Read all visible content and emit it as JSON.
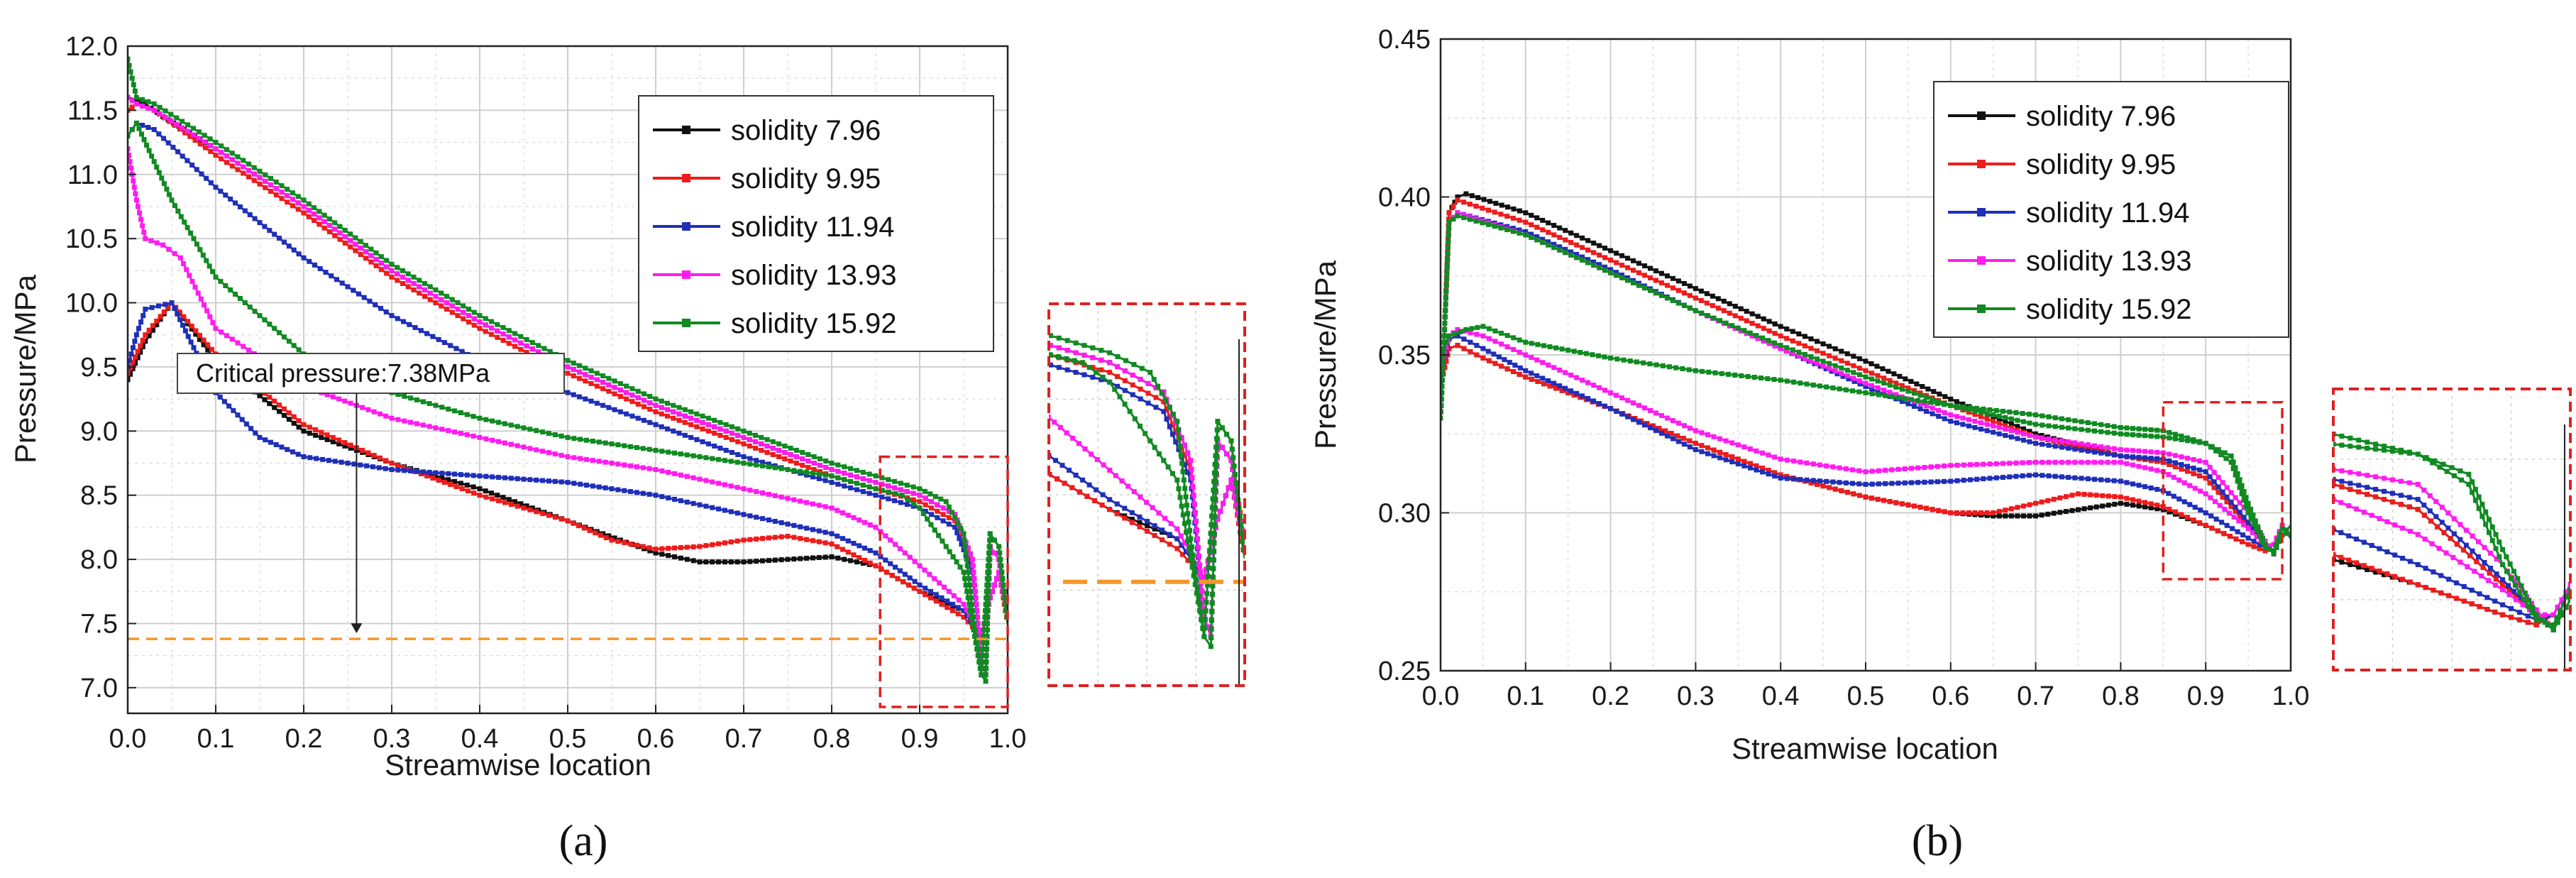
{
  "figure": {
    "panel_a_label": "(a)",
    "panel_b_label": "(b)"
  },
  "colors": {
    "solidity 7.96": "#111111",
    "solidity 9.95": "#ee1c1c",
    "solidity 11.94": "#1f2fb8",
    "solidity 13.93": "#ff1cf0",
    "solidity 15.92": "#118a22",
    "critical": "#f5962a",
    "zoom_box": "#e02020",
    "grid": "#cfcfcf"
  },
  "chart_data": [
    {
      "type": "line",
      "panel": "(a)",
      "title": "",
      "xlabel": "Streamwise location",
      "ylabel": "Pressure/MPa",
      "xlim": [
        0.0,
        1.0
      ],
      "ylim": [
        6.8,
        12.0
      ],
      "xticks": [
        "0.0",
        "0.1",
        "0.2",
        "0.3",
        "0.4",
        "0.5",
        "0.6",
        "0.7",
        "0.8",
        "0.9",
        "1.0"
      ],
      "yticks": [
        "7.0",
        "7.5",
        "8.0",
        "8.5",
        "9.0",
        "9.5",
        "10.0",
        "10.5",
        "11.0",
        "11.5",
        "12.0"
      ],
      "grid": true,
      "legend_position": "top-right",
      "annotation": {
        "text": "Critical pressure:7.38MPa",
        "x": 0.26,
        "y": 7.38
      },
      "zoom_region": {
        "x": [
          0.855,
          1.0
        ],
        "y": [
          6.85,
          8.8
        ]
      },
      "series": [
        {
          "name": "solidity 7.96",
          "group": "upper",
          "x": [
            0,
            0.01,
            0.02,
            0.04,
            0.1,
            0.2,
            0.3,
            0.4,
            0.5,
            0.6,
            0.7,
            0.8,
            0.85,
            0.9,
            0.94,
            0.96,
            0.97,
            0.975,
            0.98,
            0.99,
            1.0
          ],
          "y": [
            11.6,
            11.58,
            11.55,
            11.45,
            11.2,
            10.75,
            10.25,
            9.85,
            9.5,
            9.2,
            8.95,
            8.7,
            8.6,
            8.5,
            8.35,
            8.0,
            7.2,
            7.1,
            8.1,
            8.0,
            7.55
          ]
        },
        {
          "name": "solidity 7.96",
          "group": "lower",
          "x": [
            0,
            0.02,
            0.05,
            0.1,
            0.2,
            0.3,
            0.4,
            0.5,
            0.6,
            0.65,
            0.7,
            0.75,
            0.8,
            0.85,
            0.9,
            0.95,
            0.97,
            0.98,
            0.99,
            1.0
          ],
          "y": [
            9.4,
            9.7,
            10.0,
            9.55,
            9.0,
            8.75,
            8.55,
            8.3,
            8.05,
            7.98,
            7.98,
            8.0,
            8.02,
            7.95,
            7.75,
            7.6,
            7.4,
            7.7,
            7.9,
            7.55
          ]
        },
        {
          "name": "solidity 9.95",
          "group": "upper",
          "x": [
            0,
            0.01,
            0.03,
            0.1,
            0.2,
            0.3,
            0.4,
            0.5,
            0.6,
            0.7,
            0.8,
            0.85,
            0.9,
            0.94,
            0.96,
            0.97,
            0.975,
            0.98,
            0.99,
            1.0
          ],
          "y": [
            11.5,
            11.55,
            11.5,
            11.15,
            10.7,
            10.2,
            9.8,
            9.45,
            9.15,
            8.9,
            8.65,
            8.55,
            8.45,
            8.3,
            7.95,
            7.2,
            7.1,
            8.1,
            8.0,
            7.6
          ]
        },
        {
          "name": "solidity 9.95",
          "group": "lower",
          "x": [
            0,
            0.02,
            0.05,
            0.1,
            0.2,
            0.3,
            0.4,
            0.5,
            0.55,
            0.6,
            0.65,
            0.7,
            0.75,
            0.8,
            0.85,
            0.9,
            0.95,
            0.97,
            0.98,
            0.99,
            1.0
          ],
          "y": [
            9.45,
            9.75,
            10.0,
            9.6,
            9.05,
            8.75,
            8.5,
            8.3,
            8.15,
            8.08,
            8.1,
            8.15,
            8.18,
            8.12,
            7.95,
            7.75,
            7.55,
            7.4,
            7.7,
            7.9,
            7.5
          ]
        },
        {
          "name": "solidity 11.94",
          "group": "upper",
          "x": [
            0,
            0.01,
            0.03,
            0.1,
            0.2,
            0.3,
            0.4,
            0.5,
            0.6,
            0.7,
            0.8,
            0.85,
            0.9,
            0.94,
            0.96,
            0.97,
            0.975,
            0.98,
            0.99,
            1.0
          ],
          "y": [
            11.3,
            11.4,
            11.35,
            10.9,
            10.35,
            9.9,
            9.55,
            9.3,
            9.05,
            8.8,
            8.6,
            8.5,
            8.4,
            8.25,
            7.9,
            7.2,
            7.1,
            8.1,
            8.0,
            7.55
          ]
        },
        {
          "name": "solidity 11.94",
          "group": "lower",
          "x": [
            0,
            0.01,
            0.02,
            0.05,
            0.1,
            0.15,
            0.2,
            0.3,
            0.4,
            0.5,
            0.6,
            0.7,
            0.8,
            0.85,
            0.9,
            0.95,
            0.97,
            0.98,
            0.99,
            1.0
          ],
          "y": [
            9.5,
            9.75,
            9.95,
            10.0,
            9.3,
            8.95,
            8.8,
            8.7,
            8.65,
            8.6,
            8.5,
            8.35,
            8.2,
            8.05,
            7.8,
            7.6,
            7.4,
            7.7,
            7.9,
            7.55
          ]
        },
        {
          "name": "solidity 13.93",
          "group": "upper",
          "x": [
            0,
            0.01,
            0.03,
            0.1,
            0.2,
            0.3,
            0.4,
            0.5,
            0.6,
            0.7,
            0.8,
            0.85,
            0.9,
            0.94,
            0.96,
            0.97,
            0.975,
            0.98,
            0.99,
            1.0
          ],
          "y": [
            11.6,
            11.55,
            11.5,
            11.2,
            10.75,
            10.25,
            9.85,
            9.5,
            9.2,
            8.95,
            8.7,
            8.6,
            8.5,
            8.35,
            8.0,
            7.2,
            7.1,
            8.1,
            8.0,
            7.55
          ]
        },
        {
          "name": "solidity 13.93",
          "group": "lower",
          "x": [
            0,
            0.01,
            0.02,
            0.04,
            0.06,
            0.1,
            0.2,
            0.3,
            0.4,
            0.5,
            0.6,
            0.7,
            0.8,
            0.85,
            0.9,
            0.95,
            0.97,
            0.98,
            0.99,
            1.0
          ],
          "y": [
            11.2,
            10.8,
            10.5,
            10.45,
            10.35,
            9.8,
            9.35,
            9.1,
            8.95,
            8.8,
            8.7,
            8.55,
            8.4,
            8.25,
            7.95,
            7.65,
            7.4,
            7.7,
            7.9,
            7.55
          ]
        },
        {
          "name": "solidity 15.92",
          "group": "upper",
          "x": [
            0,
            0.01,
            0.03,
            0.1,
            0.2,
            0.3,
            0.4,
            0.5,
            0.6,
            0.7,
            0.8,
            0.85,
            0.9,
            0.93,
            0.95,
            0.96,
            0.97,
            0.975,
            0.98,
            0.99,
            1.0
          ],
          "y": [
            11.9,
            11.6,
            11.55,
            11.25,
            10.8,
            10.3,
            9.9,
            9.55,
            9.25,
            9.0,
            8.75,
            8.65,
            8.55,
            8.45,
            8.2,
            7.6,
            7.1,
            7.05,
            8.2,
            8.1,
            7.5
          ]
        },
        {
          "name": "solidity 15.92",
          "group": "lower",
          "x": [
            0,
            0.01,
            0.03,
            0.05,
            0.1,
            0.2,
            0.3,
            0.4,
            0.5,
            0.6,
            0.7,
            0.8,
            0.85,
            0.88,
            0.9,
            0.93,
            0.95,
            0.96,
            0.97,
            0.98,
            0.99,
            1.0
          ],
          "y": [
            11.3,
            11.4,
            11.1,
            10.8,
            10.2,
            9.6,
            9.3,
            9.1,
            8.95,
            8.85,
            8.75,
            8.65,
            8.55,
            8.5,
            8.4,
            8.1,
            7.9,
            7.5,
            7.1,
            8.2,
            8.1,
            7.5
          ]
        }
      ],
      "critical_pressure": 7.38
    },
    {
      "type": "line",
      "panel": "(b)",
      "title": "",
      "xlabel": "Streamwise location",
      "ylabel": "Pressure/MPa",
      "xlim": [
        0.0,
        1.0
      ],
      "ylim": [
        0.25,
        0.45
      ],
      "xticks": [
        "0.0",
        "0.1",
        "0.2",
        "0.3",
        "0.4",
        "0.5",
        "0.6",
        "0.7",
        "0.8",
        "0.9",
        "1.0"
      ],
      "yticks": [
        "0.25",
        "0.30",
        "0.35",
        "0.40",
        "0.45"
      ],
      "grid": true,
      "legend_position": "top-right",
      "zoom_region": {
        "x": [
          0.85,
          0.99
        ],
        "y": [
          0.279,
          0.335
        ]
      },
      "series": [
        {
          "name": "solidity 7.96",
          "group": "upper",
          "x": [
            0,
            0.005,
            0.01,
            0.02,
            0.03,
            0.1,
            0.2,
            0.3,
            0.4,
            0.5,
            0.6,
            0.7,
            0.8,
            0.85,
            0.9,
            0.95,
            0.97,
            0.98,
            0.99,
            1.0
          ],
          "y": [
            0.33,
            0.36,
            0.395,
            0.4,
            0.401,
            0.395,
            0.383,
            0.371,
            0.359,
            0.348,
            0.336,
            0.325,
            0.318,
            0.316,
            0.311,
            0.296,
            0.29,
            0.287,
            0.293,
            0.296
          ]
        },
        {
          "name": "solidity 7.96",
          "group": "lower",
          "x": [
            0,
            0.01,
            0.02,
            0.05,
            0.1,
            0.2,
            0.3,
            0.4,
            0.5,
            0.6,
            0.65,
            0.7,
            0.75,
            0.8,
            0.85,
            0.9,
            0.95,
            0.97,
            0.98,
            0.99,
            1.0
          ],
          "y": [
            0.34,
            0.352,
            0.353,
            0.349,
            0.343,
            0.333,
            0.322,
            0.312,
            0.305,
            0.3,
            0.299,
            0.299,
            0.301,
            0.303,
            0.301,
            0.296,
            0.29,
            0.288,
            0.29,
            0.296,
            0.293
          ]
        },
        {
          "name": "solidity 9.95",
          "group": "upper",
          "x": [
            0,
            0.005,
            0.01,
            0.02,
            0.1,
            0.2,
            0.3,
            0.4,
            0.5,
            0.6,
            0.7,
            0.8,
            0.85,
            0.9,
            0.95,
            0.97,
            0.98,
            0.99,
            1.0
          ],
          "y": [
            0.33,
            0.36,
            0.395,
            0.399,
            0.392,
            0.38,
            0.368,
            0.356,
            0.345,
            0.334,
            0.324,
            0.318,
            0.316,
            0.311,
            0.296,
            0.29,
            0.287,
            0.293,
            0.296
          ]
        },
        {
          "name": "solidity 9.95",
          "group": "lower",
          "x": [
            0,
            0.01,
            0.02,
            0.05,
            0.1,
            0.2,
            0.3,
            0.4,
            0.5,
            0.6,
            0.65,
            0.7,
            0.75,
            0.8,
            0.85,
            0.9,
            0.95,
            0.97,
            0.98,
            0.99,
            1.0
          ],
          "y": [
            0.34,
            0.352,
            0.353,
            0.349,
            0.343,
            0.333,
            0.322,
            0.312,
            0.305,
            0.3,
            0.3,
            0.303,
            0.306,
            0.305,
            0.302,
            0.296,
            0.29,
            0.288,
            0.29,
            0.296,
            0.293
          ]
        },
        {
          "name": "solidity 11.94",
          "group": "upper",
          "x": [
            0,
            0.005,
            0.01,
            0.02,
            0.1,
            0.2,
            0.3,
            0.4,
            0.5,
            0.6,
            0.7,
            0.8,
            0.85,
            0.9,
            0.95,
            0.97,
            0.98,
            0.99,
            1.0
          ],
          "y": [
            0.33,
            0.36,
            0.392,
            0.395,
            0.389,
            0.377,
            0.364,
            0.352,
            0.34,
            0.329,
            0.322,
            0.318,
            0.317,
            0.313,
            0.297,
            0.29,
            0.287,
            0.293,
            0.296
          ]
        },
        {
          "name": "solidity 11.94",
          "group": "lower",
          "x": [
            0,
            0.01,
            0.02,
            0.05,
            0.1,
            0.2,
            0.3,
            0.4,
            0.5,
            0.6,
            0.7,
            0.8,
            0.85,
            0.9,
            0.95,
            0.97,
            0.98,
            0.99,
            1.0
          ],
          "y": [
            0.345,
            0.355,
            0.356,
            0.352,
            0.345,
            0.333,
            0.32,
            0.311,
            0.309,
            0.31,
            0.312,
            0.31,
            0.307,
            0.3,
            0.292,
            0.289,
            0.29,
            0.296,
            0.293
          ]
        },
        {
          "name": "solidity 13.93",
          "group": "upper",
          "x": [
            0,
            0.005,
            0.01,
            0.02,
            0.1,
            0.2,
            0.3,
            0.4,
            0.5,
            0.6,
            0.7,
            0.8,
            0.85,
            0.9,
            0.95,
            0.97,
            0.98,
            0.99,
            1.0
          ],
          "y": [
            0.33,
            0.36,
            0.392,
            0.395,
            0.388,
            0.376,
            0.364,
            0.352,
            0.341,
            0.331,
            0.324,
            0.32,
            0.319,
            0.316,
            0.3,
            0.291,
            0.287,
            0.293,
            0.296
          ]
        },
        {
          "name": "solidity 13.93",
          "group": "lower",
          "x": [
            0,
            0.01,
            0.02,
            0.05,
            0.1,
            0.2,
            0.3,
            0.4,
            0.5,
            0.6,
            0.7,
            0.8,
            0.85,
            0.9,
            0.95,
            0.97,
            0.98,
            0.99,
            1.0
          ],
          "y": [
            0.345,
            0.356,
            0.358,
            0.356,
            0.35,
            0.338,
            0.326,
            0.317,
            0.313,
            0.315,
            0.316,
            0.316,
            0.313,
            0.306,
            0.295,
            0.29,
            0.29,
            0.296,
            0.293
          ]
        },
        {
          "name": "solidity 15.92",
          "group": "upper",
          "x": [
            0,
            0.005,
            0.01,
            0.02,
            0.1,
            0.2,
            0.3,
            0.4,
            0.5,
            0.6,
            0.7,
            0.8,
            0.85,
            0.9,
            0.93,
            0.95,
            0.97,
            0.98,
            0.99,
            1.0
          ],
          "y": [
            0.33,
            0.36,
            0.392,
            0.394,
            0.388,
            0.376,
            0.364,
            0.353,
            0.343,
            0.334,
            0.328,
            0.325,
            0.324,
            0.322,
            0.318,
            0.303,
            0.29,
            0.287,
            0.293,
            0.296
          ]
        },
        {
          "name": "solidity 15.92",
          "group": "lower",
          "x": [
            0,
            0.01,
            0.03,
            0.05,
            0.1,
            0.2,
            0.3,
            0.4,
            0.5,
            0.6,
            0.7,
            0.8,
            0.85,
            0.9,
            0.93,
            0.95,
            0.97,
            0.98,
            0.99,
            1.0
          ],
          "y": [
            0.35,
            0.356,
            0.358,
            0.359,
            0.354,
            0.349,
            0.345,
            0.342,
            0.338,
            0.334,
            0.331,
            0.327,
            0.326,
            0.322,
            0.316,
            0.3,
            0.289,
            0.288,
            0.295,
            0.292
          ]
        }
      ]
    }
  ]
}
